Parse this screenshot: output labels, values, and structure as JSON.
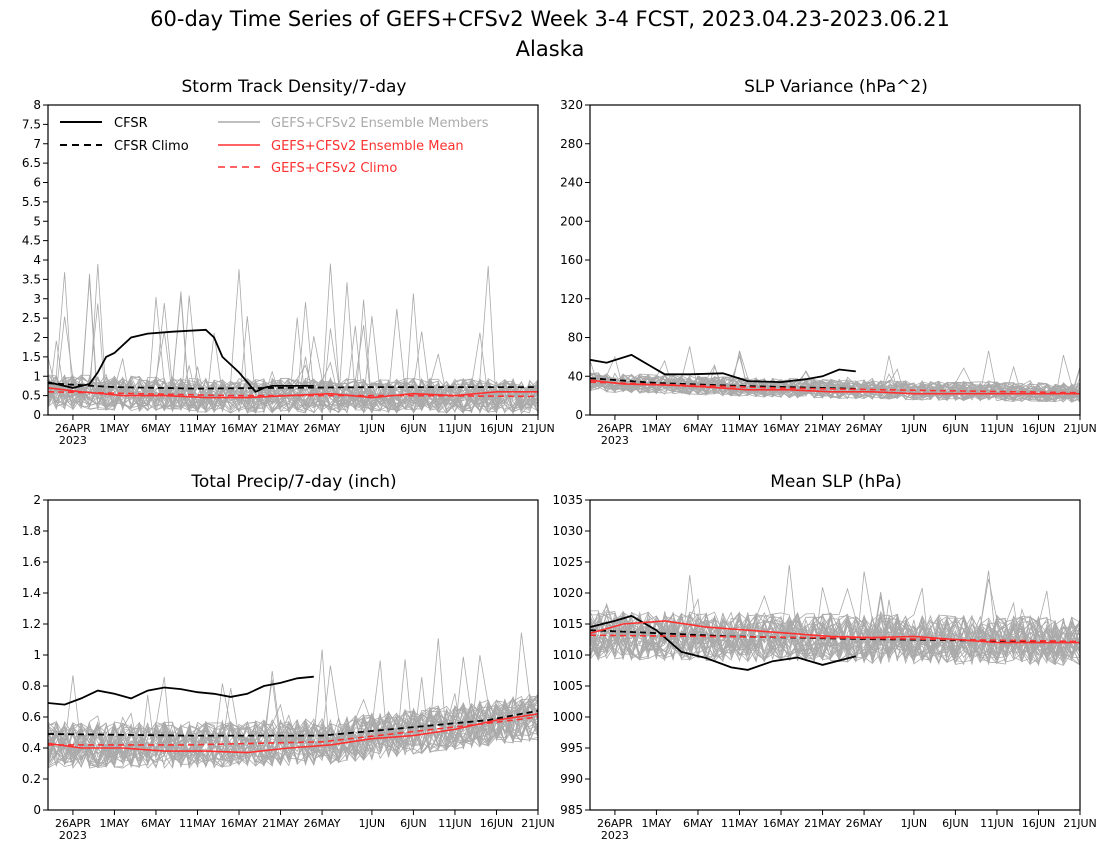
{
  "header": {
    "title": "60-day Time Series of GEFS+CFSv2 Week 3-4 FCST, 2023.04.23-2023.06.21",
    "region": "Alaska"
  },
  "colors": {
    "cfsr": "#000000",
    "members": "#aaaaaa",
    "ens_mean": "#ff3030",
    "ens_climo": "#ff3030"
  },
  "legend": {
    "cfsr": "CFSR",
    "cfsr_climo": "CFSR Climo",
    "members": "GEFS+CFSv2 Ensemble Members",
    "ens_mean": "GEFS+CFSv2 Ensemble Mean",
    "ens_climo": "GEFS+CFSv2 Climo"
  },
  "x_axis": {
    "ticks": [
      "26APR",
      "1MAY",
      "6MAY",
      "11MAY",
      "16MAY",
      "21MAY",
      "26MAY",
      "1JUN",
      "6JUN",
      "11JUN",
      "16JUN",
      "21JUN"
    ],
    "year_label": "2023",
    "start_date": "2023-04-23",
    "end_date": "2023-06-21"
  },
  "chart_data": [
    {
      "type": "line",
      "title": "Storm Track Density/7-day",
      "ylim": [
        0,
        8
      ],
      "yticks": [
        "0",
        "0.5",
        "1",
        "1.5",
        "2",
        "2.5",
        "3",
        "3.5",
        "4",
        "4.5",
        "5",
        "5.5",
        "6",
        "6.5",
        "7",
        "7.5",
        "8"
      ],
      "legend_position": "top-left",
      "members": {
        "count": 40,
        "mean": 0.6,
        "spread": 0.45,
        "max_spike": 4.1
      },
      "series": [
        {
          "name": "CFSR",
          "style": "solid",
          "x": [
            "2023-04-23",
            "2023-04-26",
            "2023-04-28",
            "2023-04-29",
            "2023-04-30",
            "2023-05-01",
            "2023-05-03",
            "2023-05-05",
            "2023-05-08",
            "2023-05-12",
            "2023-05-13",
            "2023-05-14",
            "2023-05-16",
            "2023-05-18",
            "2023-05-19",
            "2023-05-20",
            "2023-05-23",
            "2023-05-25"
          ],
          "y": [
            0.85,
            0.7,
            0.8,
            1.1,
            1.5,
            1.6,
            2.0,
            2.1,
            2.15,
            2.2,
            2.0,
            1.5,
            1.1,
            0.6,
            0.7,
            0.75,
            0.75,
            0.75
          ]
        },
        {
          "name": "CFSR Climo",
          "style": "dashed",
          "x": [
            "2023-04-23",
            "2023-05-01",
            "2023-05-11",
            "2023-05-21",
            "2023-06-01",
            "2023-06-11",
            "2023-06-21"
          ],
          "y": [
            0.82,
            0.72,
            0.68,
            0.7,
            0.72,
            0.72,
            0.72
          ]
        },
        {
          "name": "GEFS+CFSv2 Ensemble Mean",
          "style": "solid",
          "x": [
            "2023-04-23",
            "2023-04-27",
            "2023-05-02",
            "2023-05-07",
            "2023-05-12",
            "2023-05-17",
            "2023-05-22",
            "2023-05-27",
            "2023-06-01",
            "2023-06-06",
            "2023-06-11",
            "2023-06-16",
            "2023-06-21"
          ],
          "y": [
            0.7,
            0.6,
            0.5,
            0.5,
            0.45,
            0.45,
            0.5,
            0.55,
            0.45,
            0.55,
            0.5,
            0.6,
            0.6
          ]
        },
        {
          "name": "GEFS+CFSv2 Climo",
          "style": "dashed",
          "x": [
            "2023-04-23",
            "2023-05-15",
            "2023-06-05",
            "2023-06-21"
          ],
          "y": [
            0.6,
            0.5,
            0.5,
            0.48
          ]
        }
      ]
    },
    {
      "type": "line",
      "title": "SLP Variance (hPa^2)",
      "ylim": [
        0,
        320
      ],
      "yticks": [
        "0",
        "40",
        "80",
        "120",
        "160",
        "200",
        "240",
        "280",
        "320"
      ],
      "members": {
        "count": 40,
        "mean": 25,
        "spread": 10,
        "max_spike": 68
      },
      "series": [
        {
          "name": "CFSR",
          "style": "solid",
          "x": [
            "2023-04-23",
            "2023-04-25",
            "2023-04-28",
            "2023-04-30",
            "2023-05-02",
            "2023-05-05",
            "2023-05-09",
            "2023-05-12",
            "2023-05-16",
            "2023-05-19",
            "2023-05-21",
            "2023-05-23",
            "2023-05-25"
          ],
          "y": [
            57,
            54,
            62,
            52,
            42,
            42,
            43,
            35,
            34,
            37,
            40,
            47,
            45
          ]
        },
        {
          "name": "CFSR Climo",
          "style": "dashed",
          "x": [
            "2023-04-23",
            "2023-05-01",
            "2023-05-11",
            "2023-05-21",
            "2023-05-25"
          ],
          "y": [
            38,
            33,
            30,
            28,
            27
          ]
        },
        {
          "name": "GEFS+CFSv2 Ensemble Mean",
          "style": "solid",
          "x": [
            "2023-04-23",
            "2023-04-27",
            "2023-05-02",
            "2023-05-07",
            "2023-05-12",
            "2023-05-17",
            "2023-05-22",
            "2023-05-27",
            "2023-06-01",
            "2023-06-06",
            "2023-06-11",
            "2023-06-16",
            "2023-06-21"
          ],
          "y": [
            36,
            32,
            31,
            29,
            26,
            26,
            24,
            24,
            22,
            22,
            22,
            22,
            22
          ]
        },
        {
          "name": "GEFS+CFSv2 Climo",
          "style": "dashed",
          "x": [
            "2023-04-23",
            "2023-05-15",
            "2023-06-05",
            "2023-06-21"
          ],
          "y": [
            34,
            28,
            25,
            23
          ]
        }
      ]
    },
    {
      "type": "line",
      "title": "Total Precip/7-day (inch)",
      "ylim": [
        0,
        2
      ],
      "yticks": [
        "0",
        "0.2",
        "0.4",
        "0.6",
        "0.8",
        "1",
        "1.2",
        "1.4",
        "1.6",
        "1.8",
        "2"
      ],
      "members": {
        "count": 40,
        "mean": 0.4,
        "spread": 0.15,
        "max_spike": 1.0
      },
      "series": [
        {
          "name": "CFSR",
          "style": "solid",
          "x": [
            "2023-04-23",
            "2023-04-25",
            "2023-04-27",
            "2023-04-29",
            "2023-05-01",
            "2023-05-03",
            "2023-05-05",
            "2023-05-07",
            "2023-05-09",
            "2023-05-11",
            "2023-05-13",
            "2023-05-15",
            "2023-05-17",
            "2023-05-19",
            "2023-05-21",
            "2023-05-23",
            "2023-05-25"
          ],
          "y": [
            0.69,
            0.68,
            0.72,
            0.77,
            0.75,
            0.72,
            0.77,
            0.79,
            0.78,
            0.76,
            0.75,
            0.73,
            0.75,
            0.8,
            0.82,
            0.85,
            0.86
          ]
        },
        {
          "name": "CFSR Climo",
          "style": "dashed",
          "x": [
            "2023-04-23",
            "2023-05-10",
            "2023-05-26",
            "2023-06-05",
            "2023-06-15",
            "2023-06-21"
          ],
          "y": [
            0.49,
            0.48,
            0.48,
            0.53,
            0.58,
            0.64
          ]
        },
        {
          "name": "GEFS+CFSv2 Ensemble Mean",
          "style": "solid",
          "x": [
            "2023-04-23",
            "2023-04-27",
            "2023-05-02",
            "2023-05-07",
            "2023-05-12",
            "2023-05-17",
            "2023-05-22",
            "2023-05-27",
            "2023-06-01",
            "2023-06-06",
            "2023-06-11",
            "2023-06-16",
            "2023-06-21"
          ],
          "y": [
            0.43,
            0.4,
            0.4,
            0.38,
            0.38,
            0.37,
            0.4,
            0.42,
            0.46,
            0.48,
            0.52,
            0.58,
            0.62
          ]
        },
        {
          "name": "GEFS+CFSv2 Climo",
          "style": "dashed",
          "x": [
            "2023-04-23",
            "2023-05-10",
            "2023-05-26",
            "2023-06-05",
            "2023-06-15",
            "2023-06-21"
          ],
          "y": [
            0.42,
            0.42,
            0.44,
            0.5,
            0.56,
            0.6
          ]
        }
      ]
    },
    {
      "type": "line",
      "title": "Mean SLP (hPa)",
      "ylim": [
        985,
        1035
      ],
      "yticks": [
        "985",
        "990",
        "995",
        "1000",
        "1005",
        "1010",
        "1015",
        "1020",
        "1025",
        "1030",
        "1035"
      ],
      "members": {
        "count": 40,
        "mean": 1013,
        "spread": 4,
        "max_spike": 1025
      },
      "series": [
        {
          "name": "CFSR",
          "style": "solid",
          "x": [
            "2023-04-23",
            "2023-04-26",
            "2023-04-28",
            "2023-05-01",
            "2023-05-04",
            "2023-05-07",
            "2023-05-10",
            "2023-05-12",
            "2023-05-15",
            "2023-05-18",
            "2023-05-21",
            "2023-05-25"
          ],
          "y": [
            1014.5,
            1015.5,
            1016.3,
            1014.0,
            1010.5,
            1009.5,
            1008.0,
            1007.6,
            1009.0,
            1009.6,
            1008.4,
            1009.8
          ]
        },
        {
          "name": "CFSR Climo",
          "style": "dashed",
          "x": [
            "2023-04-23",
            "2023-05-10",
            "2023-05-25",
            "2023-06-10",
            "2023-06-21"
          ],
          "y": [
            1014.0,
            1013.0,
            1012.6,
            1012.3,
            1012.1
          ]
        },
        {
          "name": "GEFS+CFSv2 Ensemble Mean",
          "style": "solid",
          "x": [
            "2023-04-23",
            "2023-04-27",
            "2023-05-02",
            "2023-05-07",
            "2023-05-12",
            "2023-05-17",
            "2023-05-22",
            "2023-05-27",
            "2023-06-01",
            "2023-06-06",
            "2023-06-11",
            "2023-06-16",
            "2023-06-21"
          ],
          "y": [
            1013.5,
            1015.0,
            1015.5,
            1014.5,
            1014.0,
            1013.5,
            1013.0,
            1012.8,
            1013.0,
            1012.5,
            1012.0,
            1012.0,
            1012.0
          ]
        },
        {
          "name": "GEFS+CFSv2 Climo",
          "style": "dashed",
          "x": [
            "2023-04-23",
            "2023-05-20",
            "2023-06-21"
          ],
          "y": [
            1013.2,
            1012.8,
            1012.2
          ]
        }
      ]
    }
  ]
}
